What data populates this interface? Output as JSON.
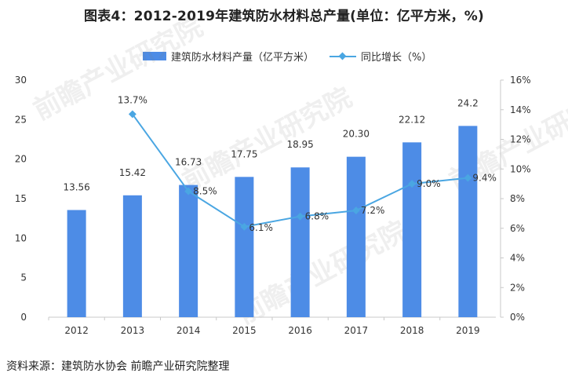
{
  "title": "图表4：2012-2019年建筑防水材料总产量(单位：亿平方米，%)",
  "source": "资料来源：建筑防水协会 前瞻产业研究院整理",
  "watermarks": [
    "前瞻产业研究院",
    "前瞻产业研究院",
    "前瞻产业研究院",
    "前瞻产业研究院"
  ],
  "colors": {
    "bar": "#4d8ce6",
    "line": "#4aa6e2",
    "axis": "#c8c8c8",
    "text": "#333333"
  },
  "chart_data": {
    "type": "bar",
    "categories": [
      "2012",
      "2013",
      "2014",
      "2015",
      "2016",
      "2017",
      "2018",
      "2019"
    ],
    "series": [
      {
        "name": "建筑防水材料产量（亿平方米）",
        "type": "bar",
        "axis": "left",
        "values": [
          13.56,
          15.42,
          16.73,
          17.75,
          18.95,
          20.3,
          22.12,
          24.2
        ],
        "labels": [
          "13.56",
          "15.42",
          "16.73",
          "17.75",
          "18.95",
          "20.30",
          "22.12",
          "24.2"
        ]
      },
      {
        "name": "同比增长（%）",
        "type": "line",
        "axis": "right",
        "x": [
          "2013",
          "2014",
          "2015",
          "2016",
          "2017",
          "2018",
          "2019"
        ],
        "values": [
          13.7,
          8.5,
          6.1,
          6.8,
          7.2,
          9.0,
          9.4
        ],
        "labels": [
          "13.7%",
          "8.5%",
          "6.1%",
          "6.8%",
          "7.2%",
          "9.0%",
          "9.4%"
        ]
      }
    ],
    "yleft": {
      "min": 0,
      "max": 30,
      "ticks": [
        "0",
        "5",
        "10",
        "15",
        "20",
        "25",
        "30"
      ]
    },
    "yright": {
      "min": 0,
      "max": 16,
      "ticks": [
        "0%",
        "2%",
        "4%",
        "6%",
        "8%",
        "10%",
        "12%",
        "14%",
        "16%"
      ]
    },
    "grid": false,
    "legend": "top-center"
  }
}
